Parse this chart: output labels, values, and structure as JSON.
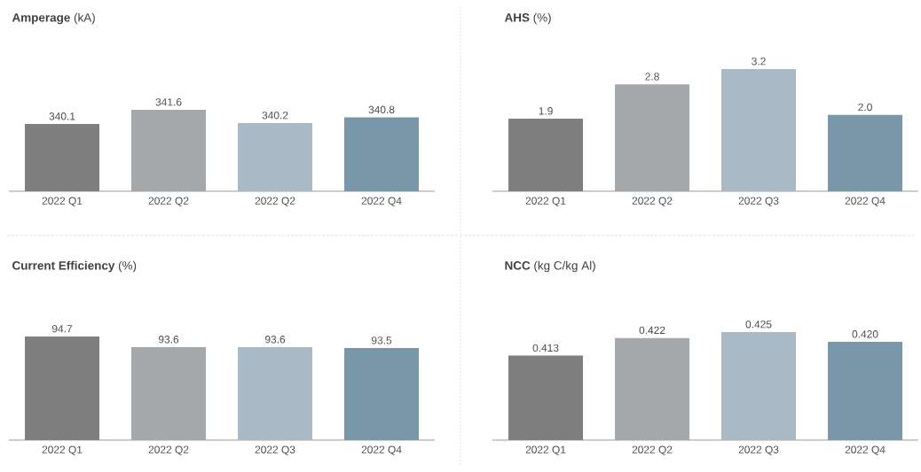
{
  "chart_data": [
    {
      "type": "bar",
      "title": "**Amperage** (kA)",
      "categories": [
        "2022 Q1",
        "2022 Q2",
        "2022 Q2",
        "2022 Q4"
      ],
      "values": [
        340.1,
        341.6,
        340.2,
        340.8
      ],
      "value_labels": [
        "340.1",
        "341.6",
        "340.2",
        "340.8"
      ],
      "colors": [
        "#7f7f7f",
        "#a5a8ab",
        "#a9b9c6",
        "#7a97aa"
      ],
      "ylim": [
        333,
        341.6
      ],
      "tick_labels": "x"
    },
    {
      "type": "bar",
      "title": "**AHS** (%)",
      "categories": [
        "2022 Q1",
        "2022 Q2",
        "2022 Q3",
        "2022 Q4"
      ],
      "values": [
        1.9,
        2.8,
        3.2,
        2.0
      ],
      "value_labels": [
        "1.9",
        "2.8",
        "3.2",
        "2.0"
      ],
      "colors": [
        "#7f7f7f",
        "#a5a8ab",
        "#a9b9c6",
        "#7a97aa"
      ],
      "ylim": [
        0,
        3.2
      ],
      "tick_labels": "x"
    },
    {
      "type": "bar",
      "title": "**Current Efficiency** (%)",
      "categories": [
        "2022 Q1",
        "2022 Q2",
        "2022 Q3",
        "2022 Q4"
      ],
      "values": [
        94.7,
        93.6,
        93.6,
        93.5
      ],
      "value_labels": [
        "94.7",
        "93.6",
        "93.6",
        "93.5"
      ],
      "colors": [
        "#7f7f7f",
        "#a5a8ab",
        "#a9b9c6",
        "#7a97aa"
      ],
      "ylim": [
        84,
        94.7
      ],
      "tick_labels": "x"
    },
    {
      "type": "bar",
      "title": "**NCC** (kg C/kg Al)",
      "categories": [
        "2022 Q1",
        "2022 Q2",
        "2022 Q3",
        "2022 Q4"
      ],
      "values": [
        0.413,
        0.422,
        0.425,
        0.42
      ],
      "value_labels": [
        "0.413",
        "0.422",
        "0.425",
        "0.420"
      ],
      "colors": [
        "#7f7f7f",
        "#a5a8ab",
        "#a9b9c6",
        "#7a97aa"
      ],
      "ylim": [
        0.37,
        0.425
      ],
      "tick_labels": "x"
    }
  ]
}
